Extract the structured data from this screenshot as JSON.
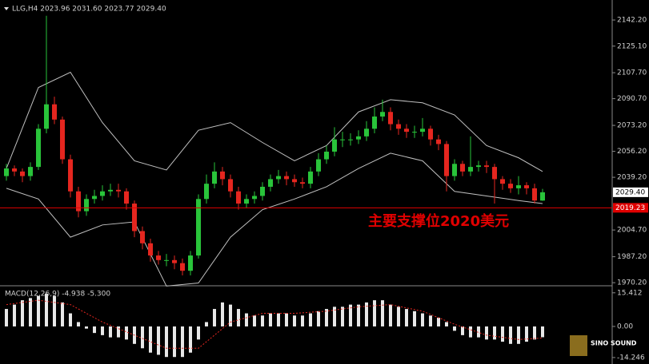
{
  "chart_data": [
    {
      "type": "candlestick",
      "title": "LLG,H4 2023.96 2031.60 2023.77 2029.40",
      "up_color": "#29c43a",
      "down_color": "#e5261f",
      "open": [
        2040,
        2045,
        2043,
        2040,
        2046,
        2071,
        2087,
        2077,
        2051,
        2030,
        2017,
        2025,
        2027,
        2030,
        2031,
        2030,
        2022,
        2004,
        1996,
        1988,
        1985,
        1985,
        1983,
        1978,
        1988,
        2025,
        2035,
        2043,
        2038,
        2030,
        2022,
        2025,
        2027,
        2033,
        2038,
        2040,
        2038,
        2036,
        2035,
        2043,
        2051,
        2056,
        2064,
        2064,
        2064,
        2066,
        2071,
        2079,
        2082,
        2074,
        2071,
        2069,
        2069,
        2071,
        2064,
        2061,
        2040,
        2048,
        2043,
        2046,
        2047,
        2046,
        2038,
        2035,
        2032,
        2034,
        2032,
        2023.96
      ],
      "high": [
        2048,
        2047,
        2045,
        2049,
        2074,
        2145,
        2092,
        2079,
        2054,
        2033,
        2028,
        2031,
        2034,
        2035,
        2035,
        2032,
        2024,
        2007,
        1999,
        1991,
        1989,
        1988,
        1986,
        1991,
        2028,
        2041,
        2049,
        2046,
        2041,
        2033,
        2028,
        2030,
        2036,
        2041,
        2044,
        2043,
        2041,
        2039,
        2046,
        2055,
        2060,
        2072,
        2069,
        2068,
        2070,
        2076,
        2085,
        2090,
        2085,
        2077,
        2074,
        2073,
        2078,
        2073,
        2067,
        2063,
        2051,
        2050,
        2066,
        2050,
        2050,
        2048,
        2040,
        2038,
        2040,
        2036,
        2035,
        2031.6
      ],
      "low": [
        2037,
        2040,
        2036,
        2037,
        2044,
        2068,
        2074,
        2048,
        2026,
        2013,
        2014,
        2022,
        2024,
        2027,
        2026,
        2018,
        2000,
        1992,
        1984,
        1982,
        1981,
        1979,
        1975,
        1975,
        1986,
        2022,
        2032,
        2034,
        2026,
        2018,
        2019,
        2022,
        2024,
        2030,
        2035,
        2034,
        2033,
        2032,
        2032,
        2040,
        2048,
        2053,
        2059,
        2060,
        2061,
        2063,
        2068,
        2076,
        2070,
        2067,
        2065,
        2065,
        2066,
        2060,
        2057,
        2030,
        2037,
        2040,
        2040,
        2043,
        2042,
        2022,
        2031,
        2029,
        2028,
        2028,
        2022,
        2023.77
      ],
      "close": [
        2045,
        2043,
        2040,
        2046,
        2071,
        2087,
        2077,
        2051,
        2030,
        2017,
        2025,
        2027,
        2030,
        2031,
        2030,
        2022,
        2004,
        1996,
        1988,
        1985,
        1985,
        1983,
        1978,
        1988,
        2025,
        2035,
        2043,
        2038,
        2030,
        2022,
        2025,
        2027,
        2033,
        2038,
        2040,
        2038,
        2036,
        2035,
        2043,
        2051,
        2056,
        2064,
        2064,
        2064,
        2066,
        2071,
        2079,
        2082,
        2074,
        2071,
        2069,
        2069,
        2071,
        2064,
        2061,
        2040,
        2048,
        2043,
        2046,
        2047,
        2046,
        2038,
        2035,
        2032,
        2034,
        2032,
        2024,
        2029.4
      ],
      "bands": {
        "color": "#c0c0c0",
        "x": [
          0,
          4,
          8,
          12,
          16,
          20,
          24,
          28,
          32,
          36,
          40,
          44,
          48,
          52,
          56,
          60,
          64,
          67
        ],
        "upper": [
          2045,
          2098,
          2108,
          2075,
          2050,
          2044,
          2070,
          2075,
          2062,
          2050,
          2060,
          2082,
          2090,
          2088,
          2080,
          2060,
          2052,
          2043
        ],
        "lower": [
          2032,
          2025,
          2000,
          2008,
          2010,
          1968,
          1970,
          2000,
          2018,
          2025,
          2033,
          2045,
          2055,
          2050,
          2030,
          2027,
          2024,
          2022
        ]
      },
      "ylim": [
        1968.7,
        2155.3
      ],
      "yticks": [
        {
          "value": 2142.2,
          "label": "2142.20"
        },
        {
          "value": 2125.1,
          "label": "2125.10"
        },
        {
          "value": 2107.7,
          "label": "2107.70"
        },
        {
          "value": 2090.7,
          "label": "2090.70"
        },
        {
          "value": 2073.2,
          "label": "2073.20"
        },
        {
          "value": 2056.2,
          "label": "2056.20"
        },
        {
          "value": 2039.2,
          "label": "2039.20"
        },
        {
          "value": 2004.7,
          "label": "2004.70"
        },
        {
          "value": 1987.2,
          "label": "1987.20"
        },
        {
          "value": 1970.2,
          "label": "1970.20"
        }
      ],
      "price_tag": {
        "value": 2029.4,
        "label": "2029.40"
      },
      "support_line": {
        "value": 2019.23,
        "color": "#e00000"
      },
      "annotation": "主要支撑位2020美元"
    },
    {
      "type": "macd",
      "title": "MACD(12,26,9) -4.938 -5.300",
      "histogram": [
        8,
        10,
        12,
        13,
        14,
        15,
        14,
        11,
        6,
        2,
        -1,
        -3,
        -4,
        -5,
        -5,
        -6,
        -8,
        -10,
        -12,
        -13,
        -14,
        -14,
        -14,
        -12,
        -6,
        2,
        8,
        11,
        10,
        8,
        6,
        5,
        5,
        6,
        6,
        6,
        5,
        5,
        6,
        7,
        8,
        9,
        9,
        10,
        10,
        11,
        12,
        12,
        10,
        9,
        8,
        7,
        6,
        5,
        4,
        2,
        -2,
        -4,
        -5,
        -5,
        -6,
        -6,
        -7,
        -8,
        -8,
        -7,
        -6,
        -4.938
      ],
      "signal": {
        "color": "#e5261f",
        "x": [
          0,
          4,
          8,
          12,
          16,
          20,
          24,
          28,
          32,
          36,
          40,
          44,
          48,
          52,
          56,
          60,
          64,
          67
        ],
        "values": [
          10,
          12,
          10,
          2,
          -4,
          -10,
          -10,
          2,
          6,
          6,
          7,
          9,
          10,
          7,
          1,
          -4,
          -6,
          -5.3
        ]
      },
      "ylim": [
        -15.75,
        17.9
      ],
      "yticks": [
        15.412,
        {
          "value": 0,
          "label": "0.00"
        },
        -14.246
      ]
    }
  ],
  "watermark": "SINO SOUND"
}
